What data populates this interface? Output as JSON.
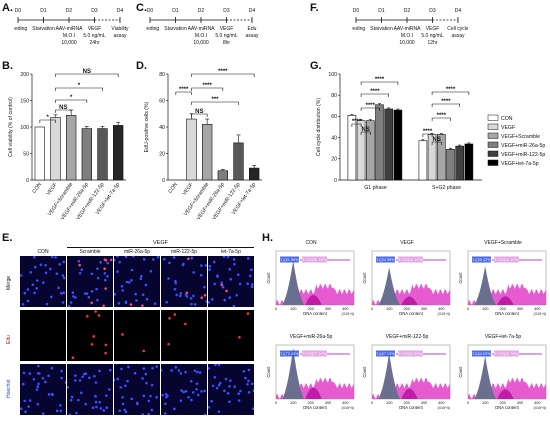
{
  "panels": {
    "A": "A.",
    "B": "B.",
    "C": "C.",
    "D": "D.",
    "E": "E.",
    "F": "F.",
    "G": "G.",
    "H": "H."
  },
  "timeline_A": {
    "days": [
      "D0",
      "D1",
      "D2",
      "D3",
      "D4"
    ],
    "steps": [
      "Seeding",
      "Starvation",
      "AAV-miRNA",
      "VEGF",
      "Viability"
    ],
    "sub": [
      "M.O.I",
      "10,000",
      "5.0 ng/mL",
      "24hr",
      "assay"
    ]
  },
  "timeline_C": {
    "days": [
      "D0",
      "D1",
      "D2",
      "D3",
      "D4"
    ],
    "steps": [
      "Seeding",
      "Starvation",
      "AAV-miRNA",
      "VEGF",
      "Edu"
    ],
    "sub": [
      "M.O.I",
      "10,000",
      "5.0 ng/mL",
      "8hr",
      "assay"
    ]
  },
  "timeline_F": {
    "days": [
      "D0",
      "D1",
      "D2",
      "D3",
      "D4"
    ],
    "steps": [
      "Seeding",
      "Starvation",
      "AAV-miRNA",
      "VEGF",
      "Cell cycle"
    ],
    "sub": [
      "M.O.I",
      "10,000",
      "5.0 ng/mL",
      "12hr",
      "assay"
    ]
  },
  "groups": [
    "CON",
    "VEGF",
    "VEGF+Scramble",
    "VEGF+miR-26a-5p",
    "VEGF+miR-122-5p",
    "VEGF+let-7a-5p"
  ],
  "chart_data": [
    {
      "id": "B",
      "type": "bar",
      "categories": [
        "CON",
        "VEGF",
        "VEGF+Scramble",
        "VEGF+miR-26a-5p",
        "VEGF+miR-122-5p",
        "VEGF+let-7a-5p"
      ],
      "values": [
        100,
        118,
        122,
        97,
        97,
        103
      ],
      "errors": [
        0,
        5,
        10,
        4,
        4,
        6
      ],
      "ylabel": "Cell viability (% of control)",
      "ylim": [
        0,
        200
      ],
      "yticks": [
        "0",
        "50",
        "100",
        "150",
        "200"
      ],
      "colors": [
        "#ffffff",
        "#d9d9d9",
        "#a6a6a6",
        "#7f7f7f",
        "#595959",
        "#262626"
      ],
      "sig": [
        "*",
        "NS",
        "*",
        "*",
        "NS"
      ]
    },
    {
      "id": "D",
      "type": "bar",
      "categories": [
        "CON",
        "VEGF",
        "VEGF+Scramble",
        "VEGF+miR-26a-5p",
        "VEGF+miR-122-5p",
        "VEGF+let-7a-5p"
      ],
      "values": [
        0,
        46,
        42,
        7,
        28,
        9
      ],
      "errors": [
        0,
        4,
        4,
        1,
        6,
        2
      ],
      "ylabel": "EdU-positive cells (%)",
      "ylim": [
        0,
        80
      ],
      "yticks": [
        "0",
        "20",
        "40",
        "60",
        "80"
      ],
      "colors": [
        "#ffffff",
        "#d9d9d9",
        "#a6a6a6",
        "#7f7f7f",
        "#595959",
        "#262626"
      ],
      "sig": [
        "****",
        "NS",
        "****",
        "***",
        "****"
      ]
    },
    {
      "id": "G",
      "type": "bar",
      "categories": [
        "G1 phase",
        "S+G2 phase"
      ],
      "series": [
        {
          "name": "CON",
          "values": [
            61,
            37
          ]
        },
        {
          "name": "VEGF",
          "values": [
            56,
            43
          ]
        },
        {
          "name": "VEGF+Scramble",
          "values": [
            56,
            43
          ]
        },
        {
          "name": "VEGF+miR-26a-5p",
          "values": [
            71,
            29
          ]
        },
        {
          "name": "VEGF+miR-122-5p",
          "values": [
            67,
            32
          ]
        },
        {
          "name": "VEGF+let-7a-5p",
          "values": [
            66,
            34
          ]
        }
      ],
      "errors": [
        [
          1,
          1
        ],
        [
          1,
          1
        ],
        [
          1,
          1
        ],
        [
          1,
          1
        ],
        [
          1,
          1
        ],
        [
          1,
          1
        ]
      ],
      "ylabel": "Cell cycle distribution (%)",
      "ylim": [
        0,
        100
      ],
      "yticks": [
        "0",
        "20",
        "40",
        "60",
        "80",
        "100"
      ],
      "colors": [
        "#ffffff",
        "#d9d9d9",
        "#a6a6a6",
        "#7f7f7f",
        "#404040",
        "#000000"
      ],
      "legend_labels": [
        "CON",
        "VEGF",
        "VEGF+Scramble",
        "VEGF+miR-26a-5p",
        "VEGF+miR-122-5p",
        "VEGF+let-7a-5p"
      ],
      "sig": [
        "****",
        "NS",
        "****",
        "****",
        "****",
        "****",
        "NS",
        "****",
        "****",
        "****"
      ]
    }
  ],
  "panelE": {
    "vegf_header": "VEGF",
    "cols": [
      "CON",
      "Scramble",
      "miR-26a-5p",
      "miR-122-5p",
      "let-7a-5p"
    ],
    "rows": [
      "Merge",
      "Edu",
      "Hoechst"
    ]
  },
  "panelH": {
    "titles": [
      "CON",
      "VEGF",
      "VEGF+Scramble",
      "VEGF+miR-26a-5p",
      "VEGF+miR-122-5p",
      "VEGF+let-7a-5p"
    ],
    "g1": [
      "G1(61.96%)",
      "G1(54.38%)",
      "G1(55.42%)",
      "G1(72.43%)",
      "G1(67.13%)",
      "G1(64.03%)"
    ],
    "sg2": [
      "S+G2(36.74%)",
      "S+G2(43.14%)",
      "S+G2(43.10%)",
      "S+G2(27.11%)",
      "S+G2(32.53%)",
      "S+G2(33.78%)"
    ],
    "xlabel": "DNA content",
    "ylabel": "Count",
    "xunit": "(X10^4)",
    "xticks": [
      "0",
      "100",
      "200",
      "300",
      "400"
    ]
  }
}
